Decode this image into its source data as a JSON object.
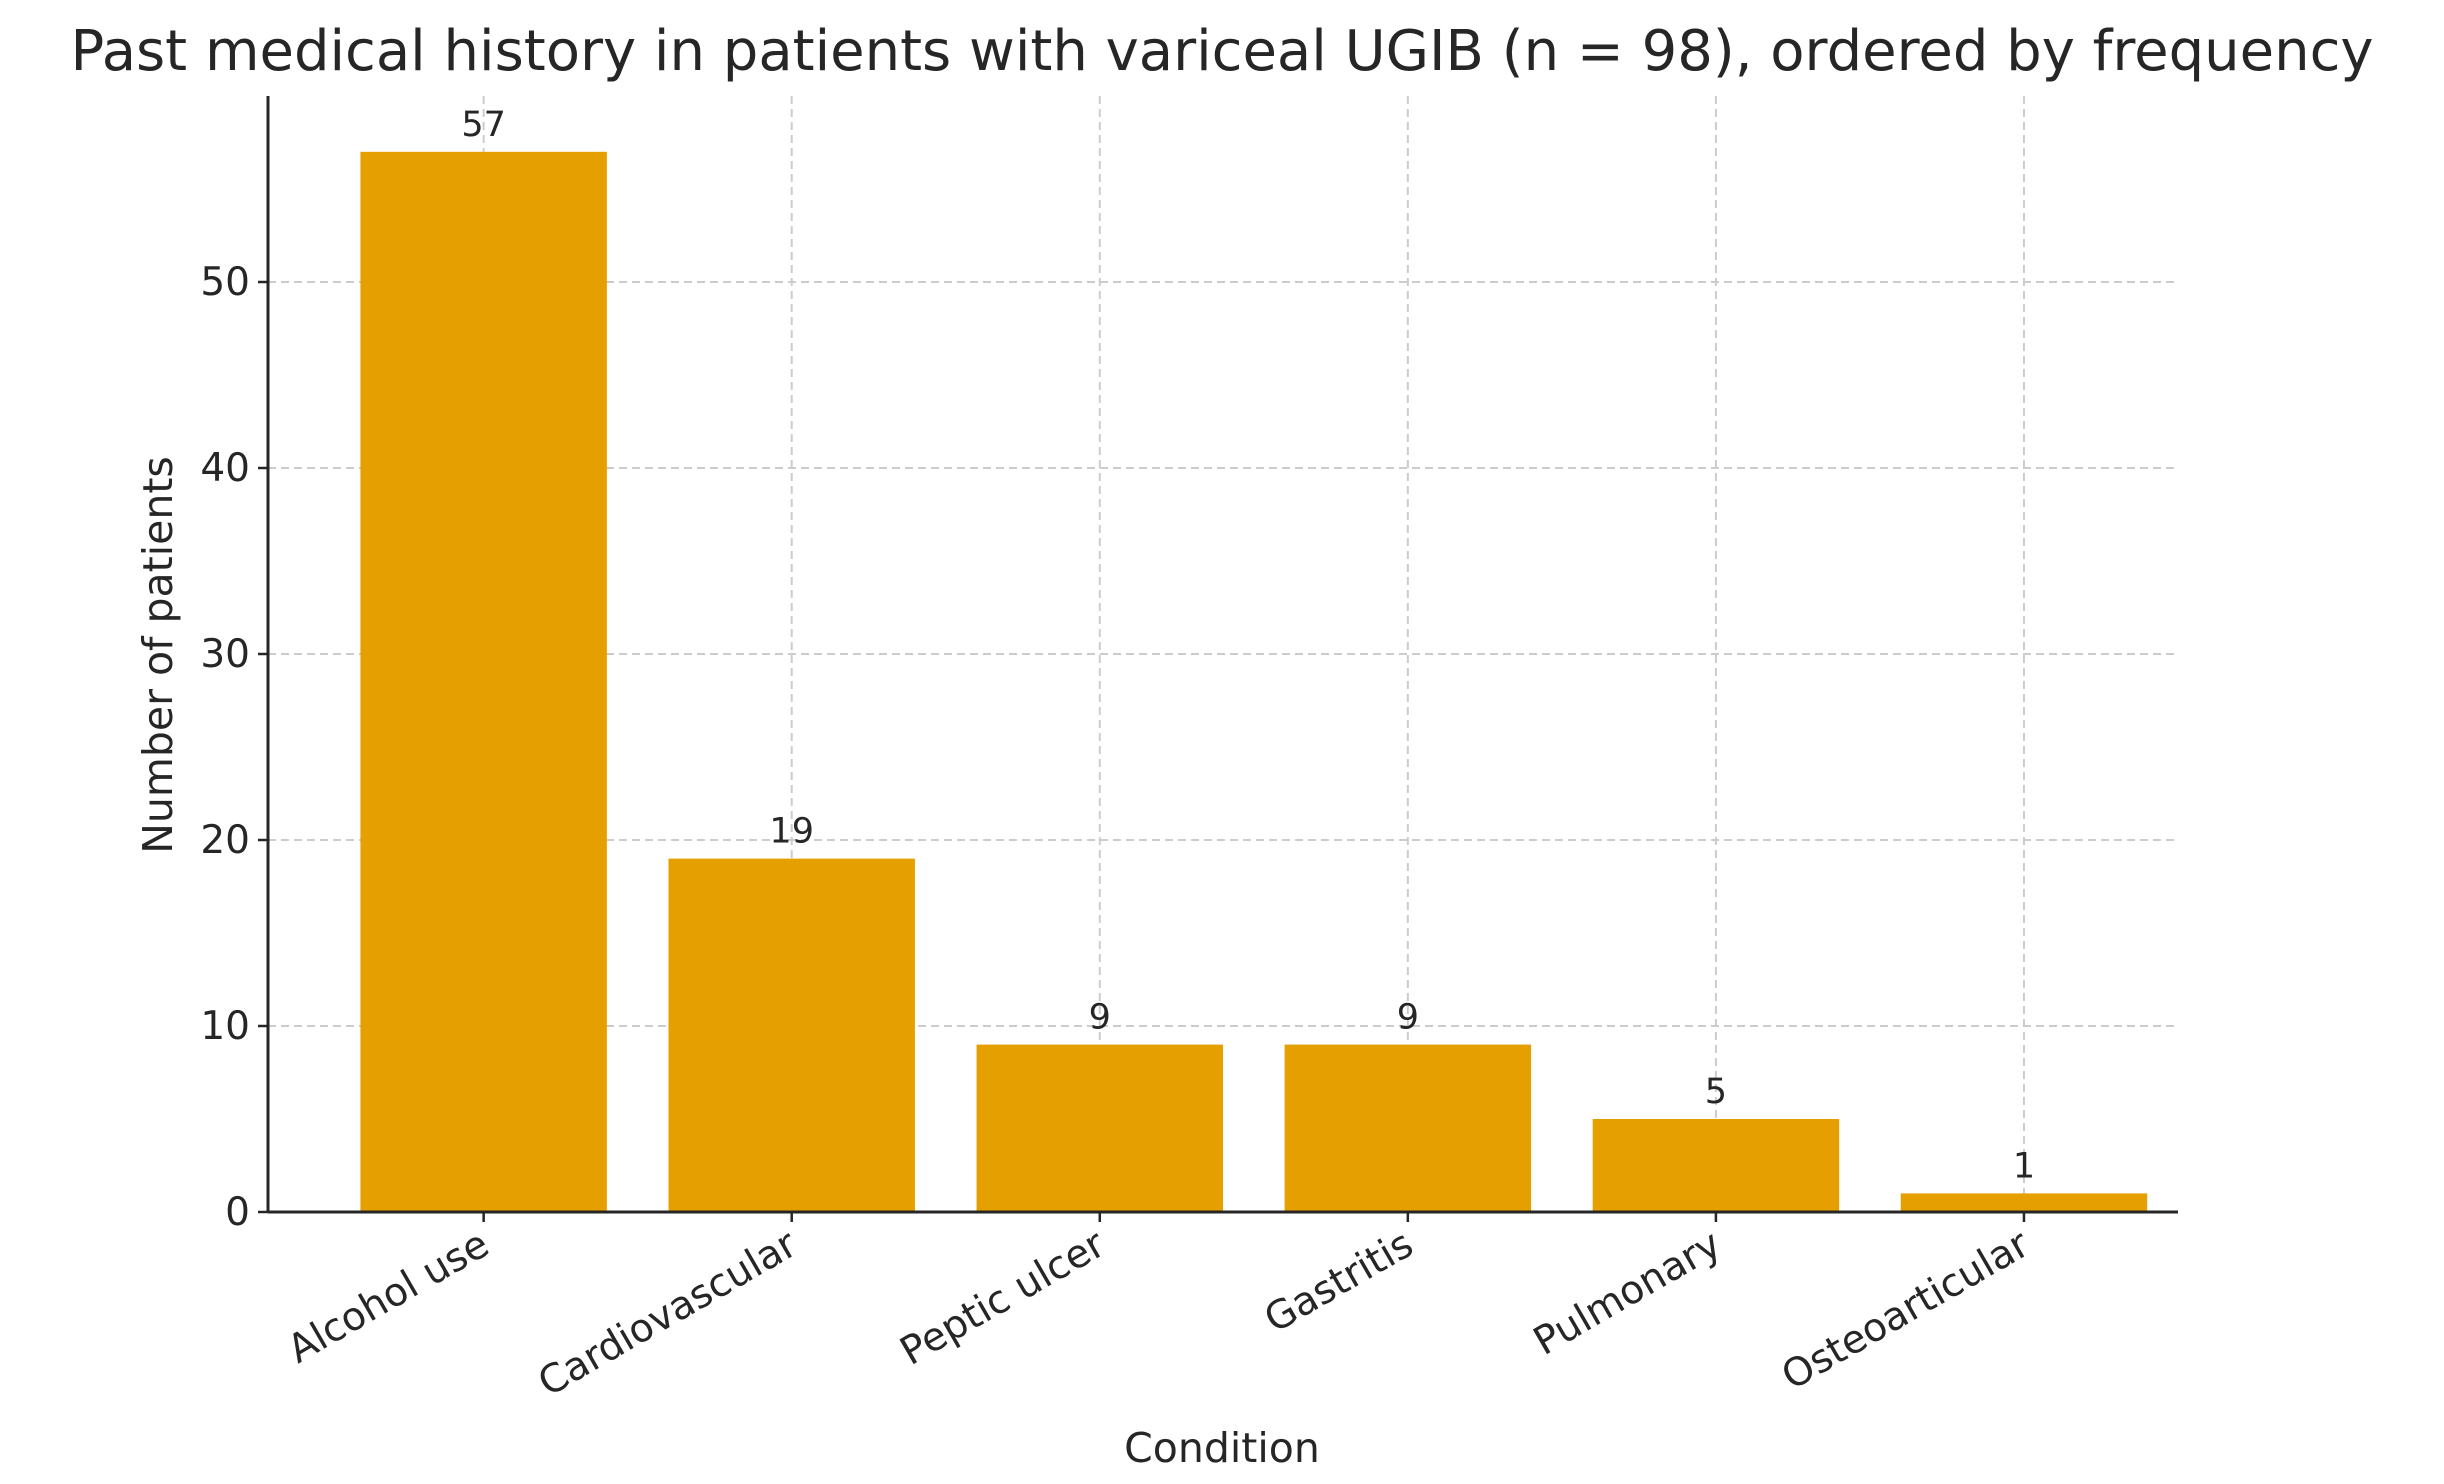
{
  "chart_data": {
    "type": "bar",
    "title": "Past medical history in patients with variceal UGIB (n = 98), ordered by frequency",
    "xlabel": "Condition",
    "ylabel": "Number of patients",
    "categories": [
      "Alcohol use",
      "Cardiovascular",
      "Peptic ulcer",
      "Gastritis",
      "Pulmonary",
      "Osteoarticular"
    ],
    "values": [
      57,
      19,
      9,
      9,
      5,
      1
    ],
    "data_labels": [
      "57",
      "19",
      "9",
      "9",
      "5",
      "1"
    ],
    "yticks": [
      0,
      10,
      20,
      30,
      40,
      50
    ],
    "ytick_labels": [
      "0",
      "10",
      "20",
      "30",
      "40",
      "50"
    ],
    "ylim": [
      0,
      60
    ],
    "grid": true,
    "bar_color": "#E5A000",
    "xtick_rotation_deg": 30
  }
}
